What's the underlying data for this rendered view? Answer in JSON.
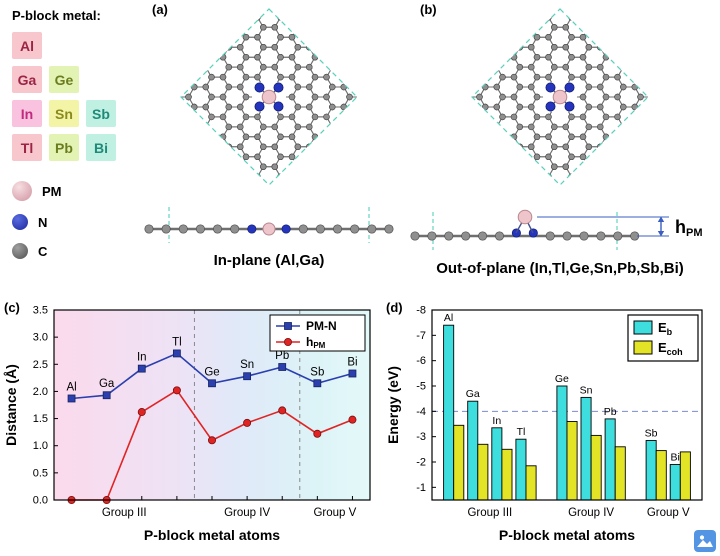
{
  "figure": {
    "legend_title": "P-block metal:",
    "metal_boxes": [
      {
        "symbol": "Al",
        "bg": "#f8c6cd",
        "fg": "#9c2444",
        "row": 1,
        "col": 1
      },
      {
        "symbol": "Ga",
        "bg": "#f8c6cd",
        "fg": "#9c2444",
        "row": 2,
        "col": 1
      },
      {
        "symbol": "Ge",
        "bg": "#e3f3b4",
        "fg": "#6b7d1f",
        "row": 2,
        "col": 2
      },
      {
        "symbol": "In",
        "bg": "#f9c2de",
        "fg": "#c02a80",
        "row": 3,
        "col": 1
      },
      {
        "symbol": "Sn",
        "bg": "#f4f4a6",
        "fg": "#8a8a1e",
        "row": 3,
        "col": 2
      },
      {
        "symbol": "Sb",
        "bg": "#bff0e2",
        "fg": "#1f8a78",
        "row": 3,
        "col": 3
      },
      {
        "symbol": "Tl",
        "bg": "#f8c6cd",
        "fg": "#9c2444",
        "row": 4,
        "col": 1
      },
      {
        "symbol": "Pb",
        "bg": "#e3f3b4",
        "fg": "#6b7d1f",
        "row": 4,
        "col": 2
      },
      {
        "symbol": "Bi",
        "bg": "#bff0e2",
        "fg": "#1f8a78",
        "row": 4,
        "col": 3
      }
    ],
    "atom_legend": [
      {
        "label": "PM",
        "center": "#f6dfe2",
        "edge": "#d193a0",
        "size": 20
      },
      {
        "label": "N",
        "center": "#5a6ae0",
        "edge": "#1a2a9c",
        "size": 16
      },
      {
        "label": "C",
        "center": "#a0a0a0",
        "edge": "#4f4f4f",
        "size": 16
      }
    ],
    "panels": {
      "a": {
        "label": "(a)",
        "caption": "In-plane (Al,Ga)"
      },
      "b": {
        "label": "(b)",
        "caption": "Out-of-plane (In,Tl,Ge,Sn,Pb,Sb,Bi)",
        "h_main": "h",
        "h_sub": "PM"
      },
      "c": {
        "label": "(c)"
      },
      "d": {
        "label": "(d)"
      }
    },
    "structure_colors": {
      "carbon": "#8f8f8f",
      "carbon_edge": "#4d4d4d",
      "nitrogen": "#2434bd",
      "nitrogen_edge": "#101d6e",
      "metal": "#eec5ca",
      "metal_edge": "#b9868e",
      "cell_dash": "#57d0bd",
      "bond": "#6f6f6f",
      "annotation_blue": "#3a5fc0"
    }
  },
  "chart_data": [
    {
      "id": "c",
      "type": "line",
      "categories": [
        "Al",
        "Ga",
        "In",
        "Tl",
        "Ge",
        "Sn",
        "Pb",
        "Sb",
        "Bi"
      ],
      "series": [
        {
          "name": "PM-N",
          "color": "#2b3faf",
          "marker": "square",
          "marker_edge": "#16245e",
          "values": [
            1.87,
            1.93,
            2.42,
            2.7,
            2.15,
            2.28,
            2.45,
            2.15,
            2.33
          ]
        },
        {
          "name": "hPM",
          "name_main": "h",
          "name_sub": "PM",
          "color": "#e02424",
          "marker": "circle",
          "marker_edge": "#7a1010",
          "values": [
            0.0,
            0.0,
            1.62,
            2.02,
            1.1,
            1.42,
            1.65,
            1.22,
            1.48
          ]
        }
      ],
      "ylabel": "Distance (Å)",
      "xlabel": "P-block metal atoms",
      "ylim": [
        0.0,
        3.5
      ],
      "yticks": [
        0.0,
        0.5,
        1.0,
        1.5,
        2.0,
        2.5,
        3.0,
        3.5
      ],
      "group_labels": [
        "Group III",
        "Group IV",
        "Group V"
      ],
      "group_sizes": [
        4,
        3,
        2
      ],
      "separator_style": "dashed-vertical-gray",
      "background_gradient": [
        "#fbdaec",
        "#eee2f5",
        "#e0e9f8",
        "#dcf3f7",
        "#e4f9f9"
      ],
      "legend_position": "top-right"
    },
    {
      "id": "d",
      "type": "bar",
      "categories": [
        "Al",
        "Ga",
        "In",
        "Tl",
        "Ge",
        "Sn",
        "Pb",
        "Sb",
        "Bi"
      ],
      "series": [
        {
          "name": "Eb",
          "name_main": "E",
          "name_sub": "b",
          "color": "#3fdede",
          "values": [
            -7.4,
            -4.4,
            -3.35,
            -2.9,
            -5.0,
            -4.55,
            -3.7,
            -2.85,
            -1.9
          ]
        },
        {
          "name": "Ecoh",
          "name_main": "E",
          "name_sub": "coh",
          "color": "#e4e426",
          "values": [
            -3.45,
            -2.7,
            -2.5,
            -1.85,
            -3.6,
            -3.05,
            -2.6,
            -2.45,
            -2.4
          ]
        }
      ],
      "ylabel": "Energy (eV)",
      "xlabel": "P-block metal atoms",
      "ylim": [
        -8,
        -1
      ],
      "yticks": [
        -8,
        -7,
        -6,
        -5,
        -4,
        -3,
        -2,
        -1
      ],
      "reference_line": -4,
      "reference_line_color": "#7b8ccd",
      "group_labels": [
        "Group III",
        "Group IV",
        "Group V"
      ],
      "group_sizes": [
        4,
        3,
        2
      ],
      "legend_position": "top-right"
    }
  ]
}
